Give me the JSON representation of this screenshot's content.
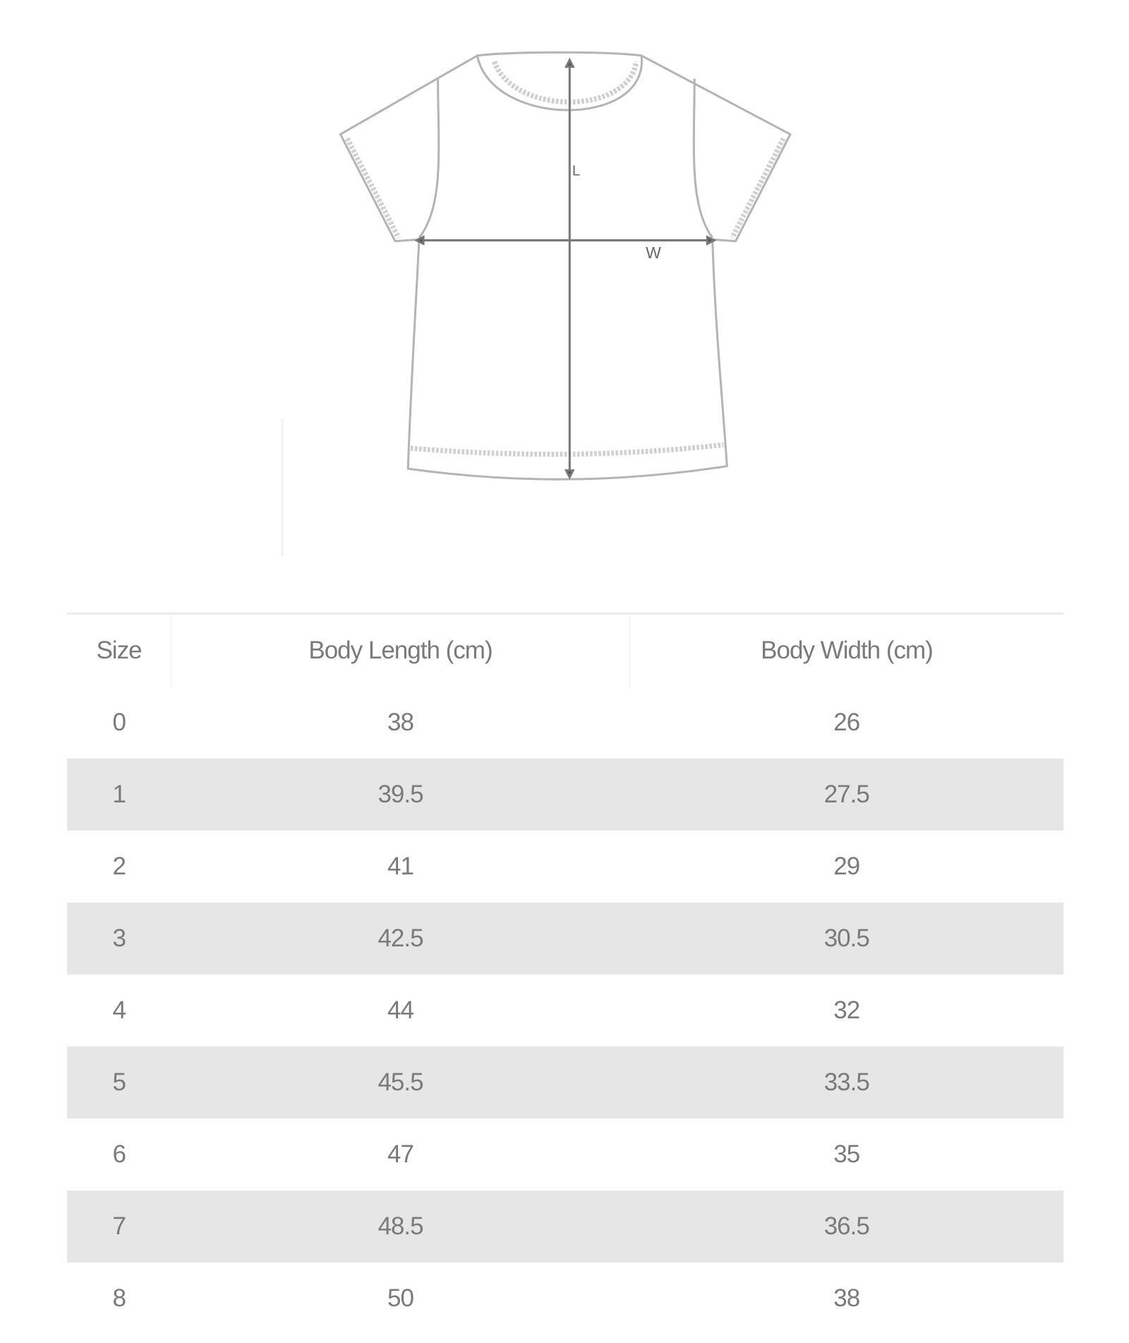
{
  "diagram": {
    "length_label": "L",
    "width_label": "W"
  },
  "table": {
    "headers": [
      "Size",
      "Body Length (cm)",
      "Body Width (cm)"
    ],
    "rows": [
      [
        "0",
        "38",
        "26"
      ],
      [
        "1",
        "39.5",
        "27.5"
      ],
      [
        "2",
        "41",
        "29"
      ],
      [
        "3",
        "42.5",
        "30.5"
      ],
      [
        "4",
        "44",
        "32"
      ],
      [
        "5",
        "45.5",
        "33.5"
      ],
      [
        "6",
        "47",
        "35"
      ],
      [
        "7",
        "48.5",
        "36.5"
      ],
      [
        "8",
        "50",
        "38"
      ]
    ],
    "stripe_color": "#e6e6e6",
    "text_color": "#7a7a7a"
  }
}
